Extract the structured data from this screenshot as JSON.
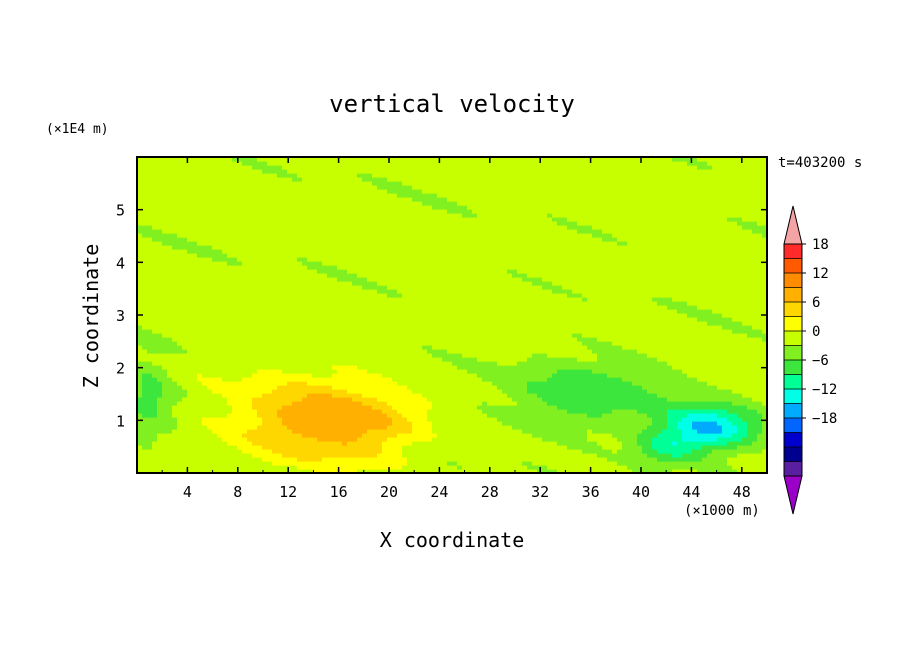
{
  "chart_data": {
    "type": "heatmap",
    "title": "vertical velocity",
    "xlabel": "X coordinate",
    "ylabel": "Z coordinate",
    "x_unit": "(×1000 m)",
    "y_unit": "(×1E4 m)",
    "time_label": "t=403200 s",
    "xlim": [
      0,
      50
    ],
    "ylim": [
      0,
      6
    ],
    "x_ticks": [
      4,
      8,
      12,
      16,
      20,
      24,
      28,
      32,
      36,
      40,
      44,
      48
    ],
    "y_ticks": [
      1,
      2,
      3,
      4,
      5
    ],
    "colorbar": {
      "tick_labels": [
        "18",
        "12",
        "6",
        "0",
        "−6",
        "−12",
        "−18"
      ],
      "tick_values": [
        18,
        12,
        6,
        0,
        -6,
        -12,
        -18
      ],
      "levels": [
        21,
        18,
        15,
        12,
        9,
        6,
        3,
        0,
        -3,
        -6,
        -9,
        -12,
        -15,
        -18,
        -21
      ],
      "colors": [
        "#f08080",
        "#ff2a2a",
        "#ff5a00",
        "#ff8c00",
        "#ffb000",
        "#ffd700",
        "#ffff00",
        "#c8ff00",
        "#80f020",
        "#3ce63c",
        "#00ff96",
        "#00ffe6",
        "#00aaff",
        "#0066ff",
        "#0000cd",
        "#000090",
        "#5a1ea0",
        "#9900cc"
      ],
      "over_color": "#f4a4a4",
      "under_color": "#9a00c8"
    },
    "features": [
      {
        "name": "updraft",
        "x": 14,
        "z": 1.0,
        "peak": 10
      },
      {
        "name": "downdraft",
        "x": 45.5,
        "z": 0.85,
        "peak": -13
      },
      {
        "name": "weak downdraft",
        "x": 36,
        "z": 1.5,
        "peak": -6
      }
    ]
  }
}
